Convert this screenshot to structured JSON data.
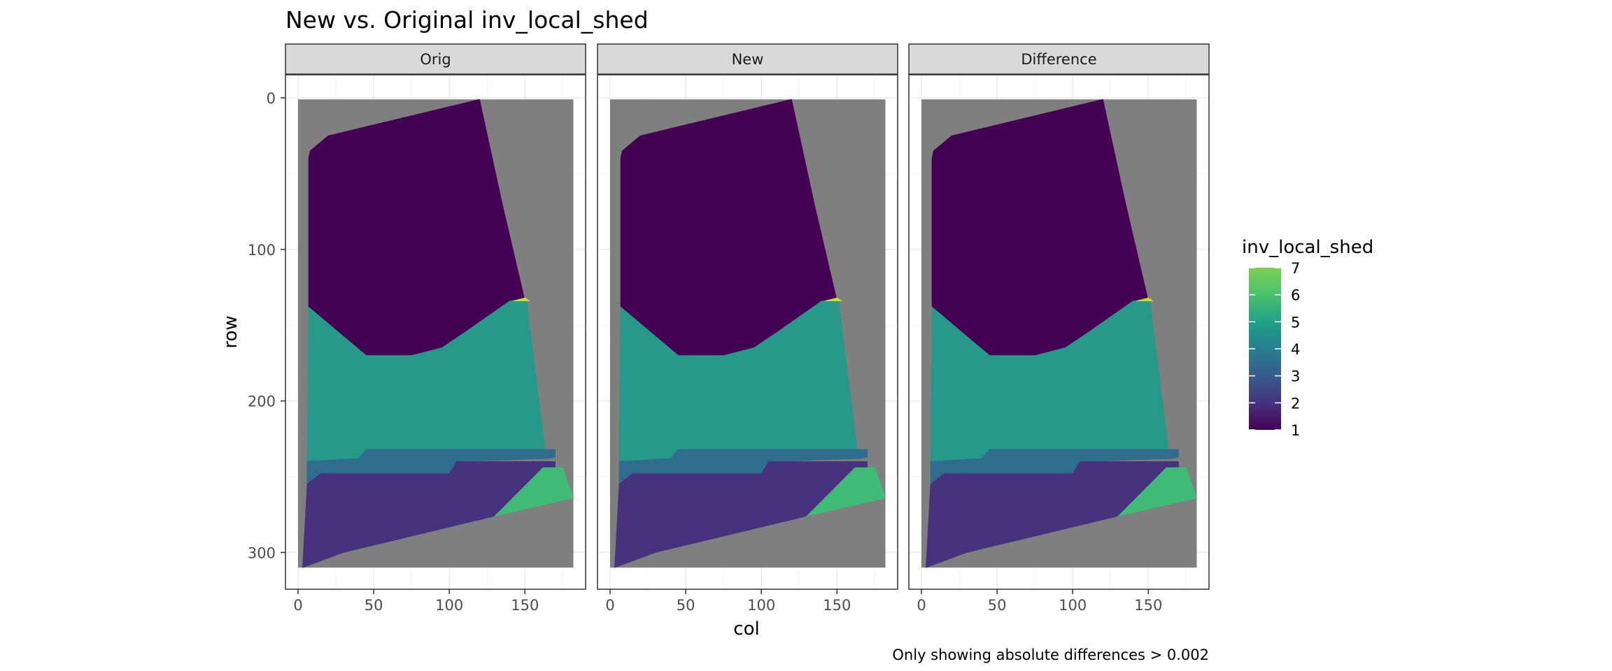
{
  "chart_data": {
    "type": "heatmap",
    "title": "New vs. Original inv_local_shed",
    "xlabel": "col",
    "ylabel": "row",
    "caption": "Only showing absolute differences > 0.002",
    "facets": [
      "Orig",
      "New",
      "Difference"
    ],
    "xlim": [
      -8,
      192
    ],
    "ylim": [
      -8,
      325
    ],
    "y_reversed": true,
    "x_ticks": [
      0,
      50,
      100,
      150
    ],
    "y_ticks": [
      0,
      100,
      200,
      300
    ],
    "grid": true,
    "legend": {
      "title": "inv_local_shed",
      "position": "right",
      "min": 1,
      "max": 7,
      "ticks": [
        1,
        2,
        3,
        4,
        5,
        6,
        7
      ],
      "colors": [
        "#440154",
        "#46337e",
        "#365c8d",
        "#277f8e",
        "#1fa187",
        "#4ac16d",
        "#7ad151"
      ]
    },
    "background_color": "#7f7f7f",
    "regions": [
      {
        "value": 1,
        "color": "#440154",
        "outline": [
          [
            120,
            1
          ],
          [
            20,
            25
          ],
          [
            8,
            35
          ],
          [
            7,
            40
          ],
          [
            7,
            138
          ],
          [
            45,
            170
          ],
          [
            75,
            170
          ],
          [
            95,
            165
          ],
          [
            110,
            155
          ],
          [
            140,
            134
          ],
          [
            150,
            134
          ],
          [
            135,
            70
          ]
        ]
      },
      {
        "value": 5,
        "color": "#26998a",
        "outline": [
          [
            7,
            138
          ],
          [
            45,
            170
          ],
          [
            75,
            170
          ],
          [
            95,
            165
          ],
          [
            110,
            155
          ],
          [
            140,
            134
          ],
          [
            151,
            134
          ],
          [
            164,
            238
          ],
          [
            115,
            238
          ],
          [
            40,
            238
          ],
          [
            6,
            240
          ]
        ]
      },
      {
        "value": 4,
        "color": "#306c8e",
        "outline": [
          [
            6,
            240
          ],
          [
            40,
            238
          ],
          [
            45,
            232
          ],
          [
            170,
            232
          ],
          [
            170,
            237
          ],
          [
            166,
            238
          ],
          [
            105,
            240
          ],
          [
            100,
            248
          ],
          [
            15,
            248
          ],
          [
            6,
            255
          ]
        ]
      },
      {
        "value": 2,
        "color": "#47327d",
        "outline": [
          [
            6,
            255
          ],
          [
            15,
            248
          ],
          [
            100,
            248
          ],
          [
            105,
            240
          ],
          [
            170,
            240
          ],
          [
            170,
            244
          ],
          [
            162,
            244
          ],
          [
            130,
            276
          ],
          [
            30,
            300
          ],
          [
            3,
            310
          ]
        ]
      },
      {
        "value": 6,
        "color": "#3fbb75",
        "outline": [
          [
            130,
            276
          ],
          [
            162,
            244
          ],
          [
            175,
            244
          ],
          [
            182,
            264
          ]
        ]
      },
      {
        "value": 7,
        "color": "#c9e120",
        "outline": [
          [
            142,
            134
          ],
          [
            150,
            132
          ],
          [
            153,
            134
          ]
        ]
      }
    ]
  }
}
